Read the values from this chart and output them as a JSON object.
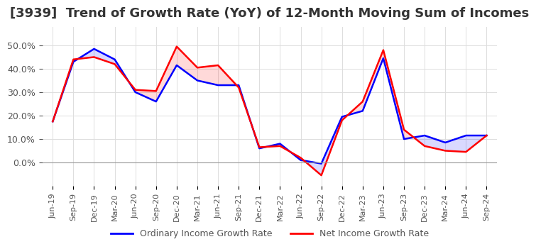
{
  "title": "[3939]  Trend of Growth Rate (YoY) of 12-Month Moving Sum of Incomes",
  "title_fontsize": 13,
  "xlabel": "",
  "ylabel": "",
  "ylim": [
    -0.1,
    0.58
  ],
  "yticks": [
    0.0,
    0.1,
    0.2,
    0.3,
    0.4,
    0.5
  ],
  "background_color": "#ffffff",
  "grid_color": "#dddddd",
  "legend_labels": [
    "Ordinary Income Growth Rate",
    "Net Income Growth Rate"
  ],
  "legend_colors": [
    "blue",
    "red"
  ],
  "x_labels": [
    "Jun-19",
    "Sep-19",
    "Dec-19",
    "Mar-20",
    "Jun-20",
    "Sep-20",
    "Dec-20",
    "Mar-21",
    "Jun-21",
    "Sep-21",
    "Dec-21",
    "Mar-22",
    "Jun-22",
    "Sep-22",
    "Dec-22",
    "Mar-23",
    "Jun-23",
    "Sep-23",
    "Dec-23",
    "Mar-24",
    "Jun-24",
    "Sep-24"
  ],
  "ordinary_income": [
    0.175,
    0.43,
    0.485,
    0.44,
    0.3,
    0.26,
    0.415,
    0.35,
    0.33,
    0.33,
    0.06,
    0.08,
    0.01,
    -0.005,
    0.195,
    0.22,
    0.445,
    0.1,
    0.115,
    0.085,
    0.115,
    0.115
  ],
  "net_income": [
    0.175,
    0.44,
    0.45,
    0.42,
    0.31,
    0.305,
    0.495,
    0.405,
    0.415,
    0.32,
    0.065,
    0.07,
    0.02,
    -0.055,
    0.18,
    0.26,
    0.48,
    0.14,
    0.07,
    0.05,
    0.045,
    0.115
  ]
}
